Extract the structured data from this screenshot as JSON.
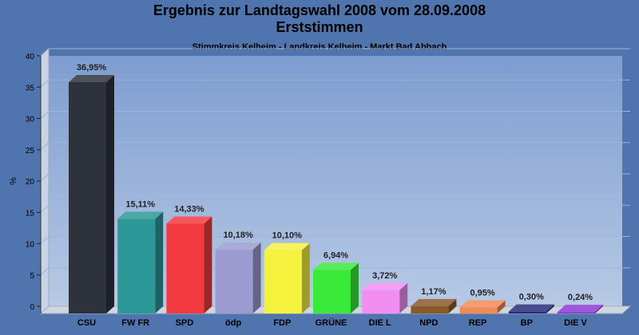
{
  "chart_data": {
    "type": "bar",
    "title_line1": "Ergebnis zur Landtagswahl 2008 vom 28.09.2008",
    "title_line2": "Erststimmen",
    "subtitle": "Stimmkreis Kelheim - Landkreis Kelheim - Markt Bad Abbach",
    "ylabel": "%",
    "ylim": [
      0,
      40
    ],
    "yticks": [
      0,
      5,
      10,
      15,
      20,
      25,
      30,
      35,
      40
    ],
    "categories": [
      "CSU",
      "FW FR",
      "SPD",
      "ödp",
      "FDP",
      "GRÜNE",
      "DIE L",
      "NPD",
      "REP",
      "BP",
      "DIE V"
    ],
    "values": [
      36.95,
      15.11,
      14.33,
      10.18,
      10.1,
      6.94,
      3.72,
      1.17,
      0.95,
      0.3,
      0.24
    ],
    "value_labels": [
      "36,95%",
      "15,11%",
      "14,33%",
      "10,18%",
      "10,10%",
      "6,94%",
      "3,72%",
      "1,17%",
      "0,95%",
      "0,30%",
      "0,24%"
    ],
    "colors": [
      "#2e323c",
      "#2d9898",
      "#f23a40",
      "#9c9ad0",
      "#f5f23e",
      "#3aea3a",
      "#f28ef2",
      "#8b5a2b",
      "#f28a55",
      "#2a2a7a",
      "#8a3ad0"
    ],
    "grid": true
  }
}
